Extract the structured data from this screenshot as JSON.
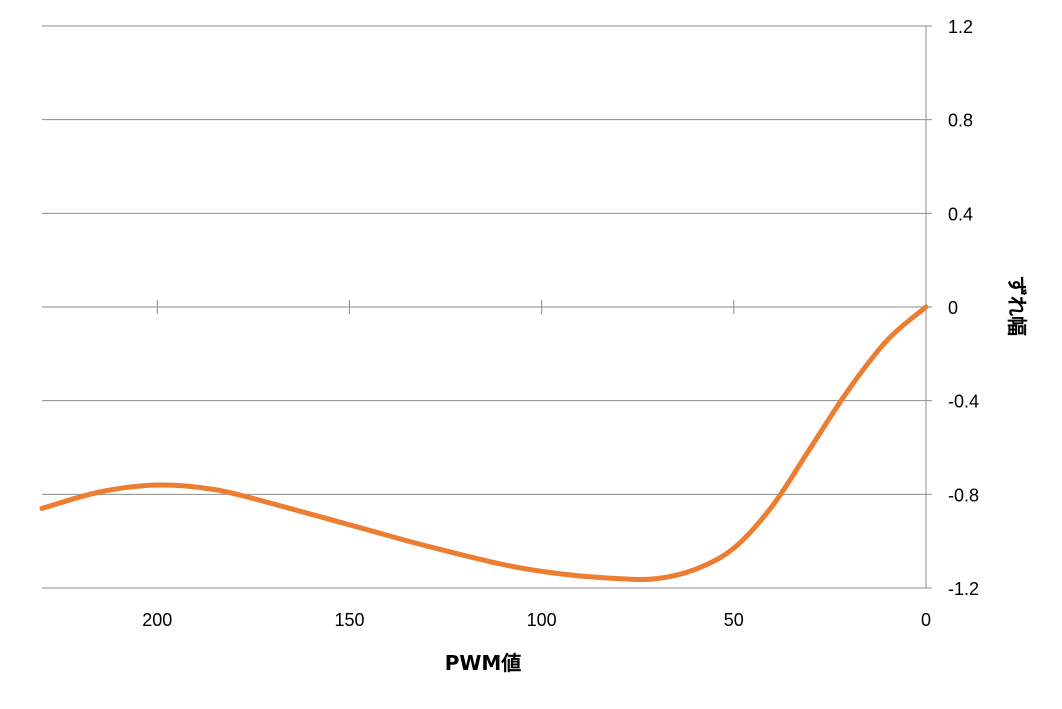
{
  "chart_data": {
    "type": "line",
    "title": "",
    "xlabel": "PWM値",
    "ylabel": "ずれ幅",
    "xlim": [
      230,
      0
    ],
    "x_reversed": true,
    "ylim": [
      -1.2,
      1.2
    ],
    "x_ticks": [
      200,
      150,
      100,
      50,
      0
    ],
    "y_ticks": [
      1.2,
      0.8,
      0.4,
      0,
      -0.4,
      -0.8,
      -1.2
    ],
    "y_tick_labels": [
      "1.2",
      "0.8",
      "0.4",
      "0",
      "-0.4",
      "-0.8",
      "-1.2"
    ],
    "y_axis_position": "right",
    "x_axis_crosses_at": 0,
    "grid": "horizontal",
    "legend": "none",
    "series": [
      {
        "color": "#ed7d31",
        "x": [
          230,
          215,
          200,
          185,
          170,
          150,
          130,
          110,
          95,
          80,
          70,
          60,
          50,
          40,
          30,
          20,
          10,
          0
        ],
        "y": [
          -0.86,
          -0.79,
          -0.76,
          -0.78,
          -0.84,
          -0.93,
          -1.02,
          -1.1,
          -1.14,
          -1.16,
          -1.16,
          -1.12,
          -1.03,
          -0.85,
          -0.6,
          -0.35,
          -0.14,
          0
        ]
      }
    ]
  }
}
